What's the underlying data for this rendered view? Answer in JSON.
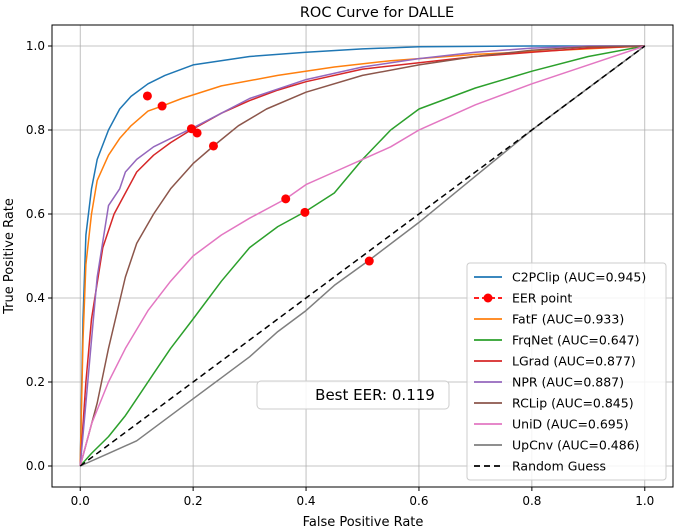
{
  "chart_data": {
    "type": "line",
    "title": "ROC Curve for DALLE",
    "xlabel": "False Positive Rate",
    "ylabel": "True Positive Rate",
    "xlim": [
      -0.05,
      1.05
    ],
    "ylim": [
      -0.05,
      1.05
    ],
    "xticks": [
      "0.0",
      "0.2",
      "0.4",
      "0.6",
      "0.8",
      "1.0"
    ],
    "yticks": [
      "0.0",
      "0.2",
      "0.4",
      "0.6",
      "0.8",
      "1.0"
    ],
    "grid": true,
    "legend_position": "lower-right",
    "annotation": "Best EER: 0.119",
    "eer_label": "EER point",
    "series": [
      {
        "name": "C2PClip (AUC=0.945)",
        "color": "#1f77b4",
        "x": [
          0,
          0.005,
          0.01,
          0.02,
          0.03,
          0.05,
          0.07,
          0.09,
          0.12,
          0.15,
          0.2,
          0.3,
          0.4,
          0.5,
          0.6,
          0.8,
          1.0
        ],
        "y": [
          0,
          0.35,
          0.55,
          0.66,
          0.73,
          0.8,
          0.85,
          0.88,
          0.91,
          0.93,
          0.955,
          0.975,
          0.985,
          0.993,
          0.998,
          1.0,
          1.0
        ],
        "eer": [
          0.119,
          0.881
        ]
      },
      {
        "name": "FatF (AUC=0.933)",
        "color": "#ff7f0e",
        "x": [
          0,
          0.005,
          0.01,
          0.02,
          0.03,
          0.05,
          0.07,
          0.09,
          0.12,
          0.145,
          0.18,
          0.25,
          0.35,
          0.45,
          0.55,
          0.7,
          0.85,
          1.0
        ],
        "y": [
          0,
          0.3,
          0.48,
          0.6,
          0.68,
          0.74,
          0.78,
          0.81,
          0.845,
          0.857,
          0.875,
          0.905,
          0.93,
          0.95,
          0.965,
          0.98,
          0.99,
          1.0
        ],
        "eer": [
          0.145,
          0.857
        ]
      },
      {
        "name": "FrqNet (AUC=0.647)",
        "color": "#2ca02c",
        "x": [
          0,
          0.02,
          0.05,
          0.08,
          0.1,
          0.13,
          0.16,
          0.2,
          0.25,
          0.3,
          0.35,
          0.398,
          0.45,
          0.5,
          0.55,
          0.6,
          0.7,
          0.8,
          0.9,
          1.0
        ],
        "y": [
          0,
          0.03,
          0.07,
          0.12,
          0.16,
          0.22,
          0.28,
          0.35,
          0.44,
          0.52,
          0.57,
          0.605,
          0.65,
          0.73,
          0.8,
          0.85,
          0.9,
          0.94,
          0.975,
          1.0
        ],
        "eer": [
          0.398,
          0.604
        ]
      },
      {
        "name": "LGrad (AUC=0.877)",
        "color": "#d62728",
        "x": [
          0,
          0.01,
          0.02,
          0.04,
          0.06,
          0.08,
          0.1,
          0.13,
          0.16,
          0.19,
          0.21,
          0.25,
          0.3,
          0.35,
          0.4,
          0.5,
          0.6,
          0.7,
          0.8,
          0.9,
          1.0
        ],
        "y": [
          0,
          0.2,
          0.35,
          0.52,
          0.6,
          0.65,
          0.7,
          0.74,
          0.77,
          0.795,
          0.81,
          0.84,
          0.87,
          0.895,
          0.915,
          0.945,
          0.96,
          0.975,
          0.985,
          0.995,
          1.0
        ],
        "eer": [
          0.207,
          0.793
        ]
      },
      {
        "name": "NPR (AUC=0.887)",
        "color": "#9467bd",
        "x": [
          0,
          0.01,
          0.02,
          0.03,
          0.05,
          0.07,
          0.08,
          0.1,
          0.13,
          0.16,
          0.197,
          0.25,
          0.3,
          0.4,
          0.5,
          0.6,
          0.7,
          0.8,
          0.9,
          1.0
        ],
        "y": [
          0,
          0.15,
          0.3,
          0.45,
          0.62,
          0.66,
          0.7,
          0.73,
          0.76,
          0.78,
          0.803,
          0.84,
          0.875,
          0.92,
          0.95,
          0.97,
          0.985,
          0.995,
          1.0,
          1.0
        ],
        "eer": [
          0.197,
          0.803
        ]
      },
      {
        "name": "RCLip (AUC=0.845)",
        "color": "#8c564b",
        "x": [
          0,
          0.01,
          0.03,
          0.05,
          0.08,
          0.1,
          0.13,
          0.16,
          0.2,
          0.236,
          0.28,
          0.33,
          0.4,
          0.5,
          0.6,
          0.7,
          0.8,
          0.9,
          1.0
        ],
        "y": [
          0,
          0.05,
          0.15,
          0.28,
          0.45,
          0.53,
          0.6,
          0.66,
          0.72,
          0.762,
          0.81,
          0.85,
          0.89,
          0.93,
          0.955,
          0.975,
          0.99,
          0.998,
          1.0
        ],
        "eer": [
          0.236,
          0.762
        ]
      },
      {
        "name": "UniD (AUC=0.695)",
        "color": "#e377c2",
        "x": [
          0,
          0.02,
          0.05,
          0.08,
          0.12,
          0.16,
          0.2,
          0.25,
          0.3,
          0.364,
          0.4,
          0.45,
          0.5,
          0.55,
          0.6,
          0.7,
          0.8,
          0.9,
          1.0
        ],
        "y": [
          0,
          0.1,
          0.2,
          0.28,
          0.37,
          0.44,
          0.5,
          0.55,
          0.59,
          0.636,
          0.67,
          0.7,
          0.73,
          0.76,
          0.8,
          0.86,
          0.91,
          0.955,
          1.0
        ],
        "eer": [
          0.364,
          0.636
        ]
      },
      {
        "name": "UpCnv (AUC=0.486)",
        "color": "#7f7f7f",
        "x": [
          0,
          0.05,
          0.1,
          0.15,
          0.2,
          0.25,
          0.3,
          0.35,
          0.4,
          0.45,
          0.51,
          0.6,
          0.7,
          0.8,
          0.9,
          1.0
        ],
        "y": [
          0,
          0.03,
          0.06,
          0.11,
          0.16,
          0.21,
          0.26,
          0.32,
          0.37,
          0.43,
          0.488,
          0.58,
          0.69,
          0.8,
          0.9,
          1.0
        ],
        "eer": [
          0.512,
          0.488
        ]
      }
    ],
    "reference": {
      "name": "Random Guess",
      "color": "#000000",
      "x": [
        0,
        1
      ],
      "y": [
        0,
        1
      ]
    }
  }
}
